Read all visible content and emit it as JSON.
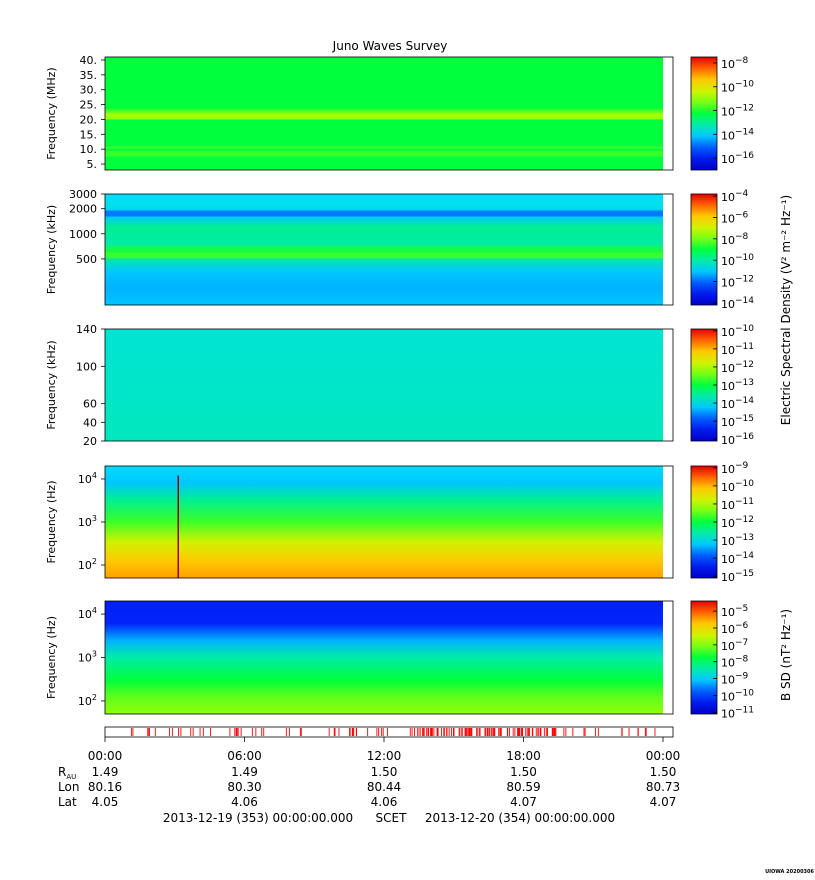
{
  "title": "Juno Waves Survey",
  "colorbar_label_electric": "Electric Spectral Density (V² m⁻² Hz⁻¹)",
  "colorbar_label_magnetic": "B SD (nT² Hz⁻¹)",
  "chart_data": [
    {
      "type": "heatmap",
      "ylabel": "Frequency (MHz)",
      "yscale": "linear",
      "ylim": [
        3,
        41
      ],
      "yticks": [
        {
          "v": 5,
          "label": "5."
        },
        {
          "v": 10,
          "label": "10."
        },
        {
          "v": 15,
          "label": "15."
        },
        {
          "v": 20,
          "label": "20."
        },
        {
          "v": 25,
          "label": "25."
        },
        {
          "v": 30,
          "label": "30."
        },
        {
          "v": 35,
          "label": "35."
        },
        {
          "v": 40,
          "label": "40."
        }
      ],
      "colorbar": {
        "scale": "log",
        "ticks": [
          -8,
          -10,
          -12,
          -14,
          -16
        ],
        "range": [
          -17,
          -7.5
        ]
      },
      "features": [
        {
          "kind": "horizontal-band",
          "y": 21,
          "level": "yellow-green"
        },
        {
          "kind": "horizontal-band",
          "y": 8.5,
          "level": "green"
        }
      ]
    },
    {
      "type": "heatmap",
      "ylabel": "Frequency (kHz)",
      "yscale": "log",
      "ylim": [
        140,
        3000
      ],
      "yticks": [
        {
          "v": 500,
          "label": "500"
        },
        {
          "v": 1000,
          "label": "1000"
        },
        {
          "v": 2000,
          "label": "2000"
        },
        {
          "v": 3000,
          "label": "3000"
        }
      ],
      "colorbar": {
        "scale": "log",
        "ticks": [
          -4,
          -6,
          -8,
          -10,
          -12,
          -14
        ],
        "range": [
          -14.2,
          -3.8
        ]
      },
      "features": [
        {
          "kind": "horizontal-band",
          "y": 550,
          "level": "green"
        },
        {
          "kind": "horizontal-band",
          "y": 1750,
          "level": "blue"
        }
      ]
    },
    {
      "type": "heatmap",
      "ylabel": "Frequency (kHz)",
      "yscale": "linear",
      "ylim": [
        20,
        140
      ],
      "yticks": [
        {
          "v": 20,
          "label": "20"
        },
        {
          "v": 40,
          "label": "40"
        },
        {
          "v": 60,
          "label": "60"
        },
        {
          "v": 100,
          "label": "100"
        },
        {
          "v": 140,
          "label": "140"
        }
      ],
      "colorbar": {
        "scale": "log",
        "ticks": [
          -10,
          -11,
          -12,
          -13,
          -14,
          -15,
          -16
        ],
        "range": [
          -16.1,
          -9.9
        ]
      },
      "features": []
    },
    {
      "type": "heatmap",
      "ylabel": "Frequency (Hz)",
      "yscale": "log",
      "ylim": [
        50,
        20000
      ],
      "yticks": [
        {
          "v": 100,
          "label": "10",
          "exp": "2"
        },
        {
          "v": 1000,
          "label": "10",
          "exp": "3"
        },
        {
          "v": 10000,
          "label": "10",
          "exp": "4"
        }
      ],
      "colorbar": {
        "scale": "log",
        "ticks": [
          -9,
          -10,
          -11,
          -12,
          -13,
          -14,
          -15
        ],
        "range": [
          -15.1,
          -8.9
        ]
      },
      "features": [
        {
          "kind": "vertical-spike",
          "x_hours": 3.15,
          "from_y": 50,
          "to_y": 12000
        }
      ]
    },
    {
      "type": "heatmap",
      "ylabel": "Frequency (Hz)",
      "yscale": "log",
      "ylim": [
        50,
        20000
      ],
      "yticks": [
        {
          "v": 100,
          "label": "10",
          "exp": "2"
        },
        {
          "v": 1000,
          "label": "10",
          "exp": "3"
        },
        {
          "v": 10000,
          "label": "10",
          "exp": "4"
        }
      ],
      "colorbar": {
        "scale": "log",
        "ticks": [
          -5,
          -6,
          -7,
          -8,
          -9,
          -10,
          -11
        ],
        "range": [
          -11.1,
          -4.4
        ]
      },
      "features": []
    }
  ],
  "x_axis": {
    "range_hours": [
      0,
      24
    ],
    "ticks": [
      {
        "h": 0,
        "label": "00:00"
      },
      {
        "h": 6,
        "label": "06:00"
      },
      {
        "h": 12,
        "label": "12:00"
      },
      {
        "h": 18,
        "label": "18:00"
      },
      {
        "h": 24,
        "label": "00:00"
      }
    ]
  },
  "ephemeris": {
    "rows": [
      {
        "label": "R",
        "sub": "AU",
        "values": [
          "1.49",
          "1.49",
          "1.50",
          "1.50",
          "1.50"
        ]
      },
      {
        "label": "Lon",
        "sub": "",
        "values": [
          "80.16",
          "80.30",
          "80.44",
          "80.59",
          "80.73"
        ]
      },
      {
        "label": "Lat",
        "sub": "",
        "values": [
          "4.05",
          "4.06",
          "4.06",
          "4.07",
          "4.07"
        ]
      }
    ]
  },
  "time_range": {
    "start": "2013-12-19 (353) 00:00:00.000",
    "scet": "SCET",
    "end": "2013-12-20 (354) 00:00:00.000"
  },
  "footer": "UIOWA 20200306"
}
